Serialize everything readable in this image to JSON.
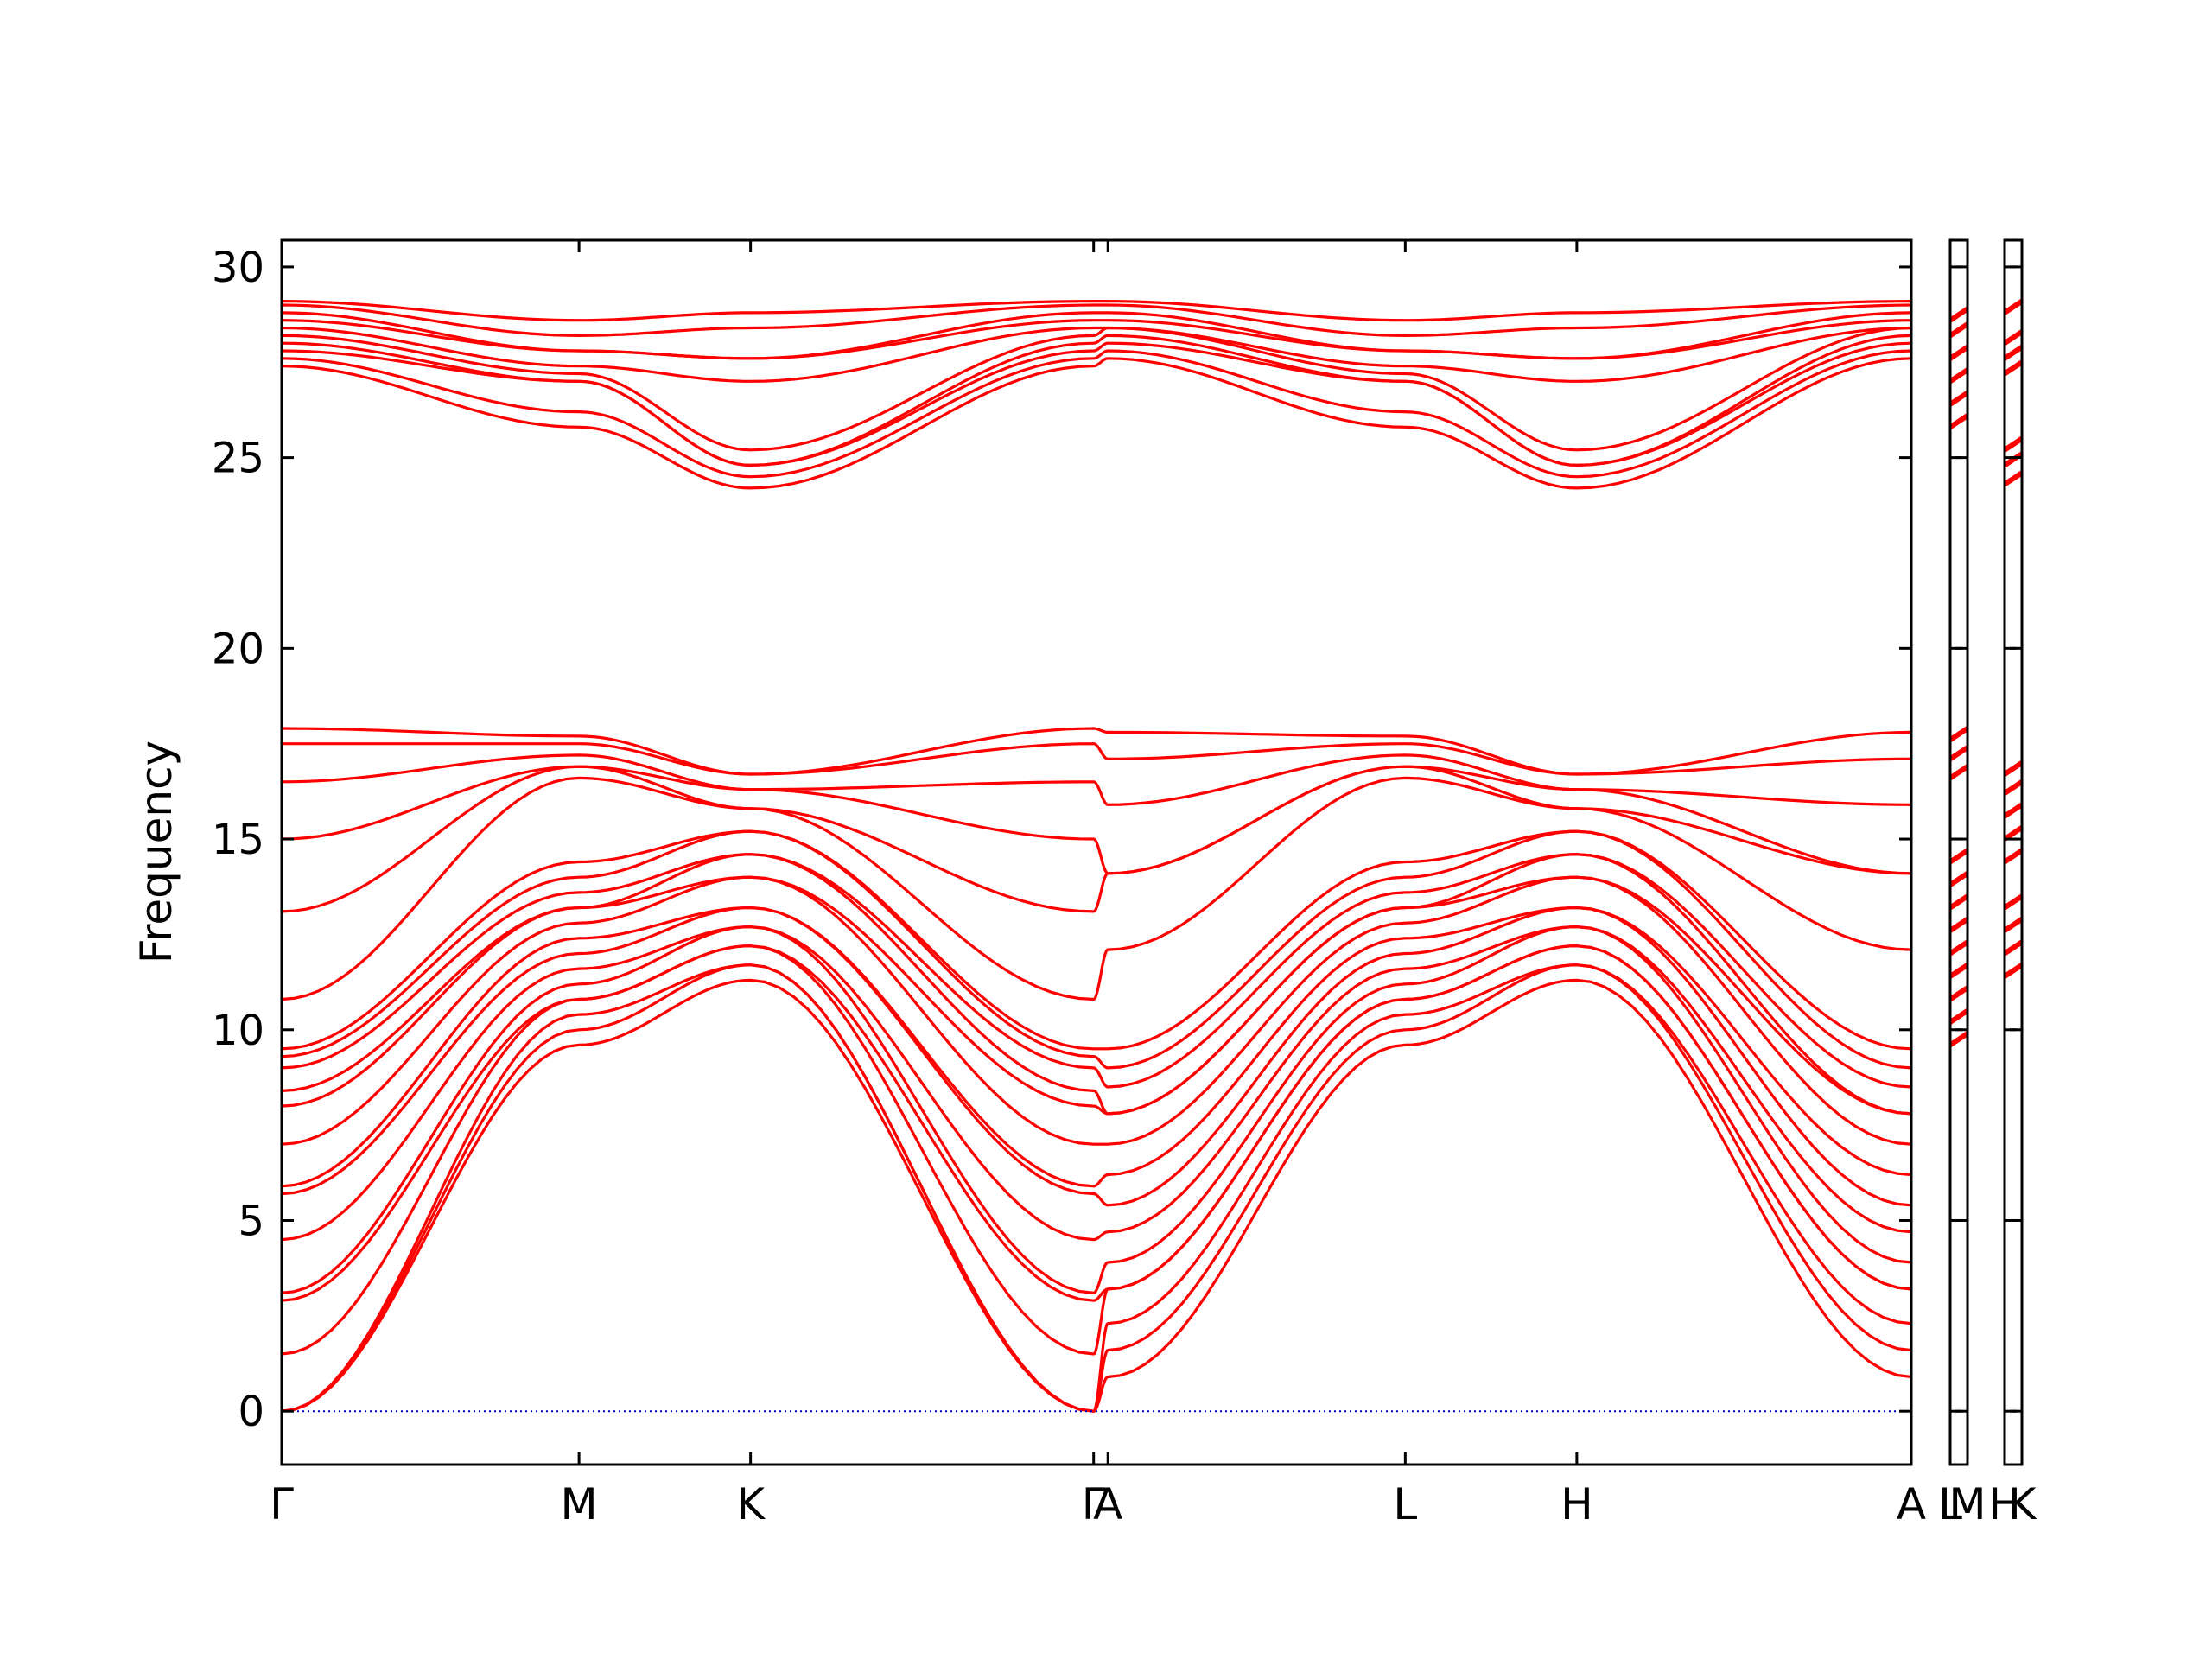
{
  "chart_data": {
    "type": "line",
    "title": "",
    "ylabel": "Frequency",
    "xlabel": "",
    "ylim": [
      -1.4,
      30.7
    ],
    "yticks": [
      0,
      5,
      10,
      15,
      20,
      25,
      30
    ],
    "ytick_labels": [
      "0",
      "5",
      "10",
      "15",
      "20",
      "25",
      "30"
    ],
    "grid": false,
    "line_color": "#ff0000",
    "zero_line_color": "#0000cc",
    "panels": [
      {
        "id": "main",
        "xrange": [
          0,
          5.7
        ],
        "ticks": [
          {
            "x": 0,
            "label": "Γ"
          },
          {
            "x": 1.04,
            "label": "M"
          },
          {
            "x": 1.64,
            "label": "K"
          },
          {
            "x": 2.84,
            "label": "Γ"
          },
          {
            "x": 2.89,
            "label": "A"
          },
          {
            "x": 3.93,
            "label": "L"
          },
          {
            "x": 4.53,
            "label": "H"
          },
          {
            "x": 5.7,
            "label": "A"
          }
        ]
      },
      {
        "id": "segment-LM",
        "xrange": [
          0,
          0.05
        ],
        "ticks": [
          {
            "x": 0,
            "label": "L"
          },
          {
            "x": 0.05,
            "label": "M"
          }
        ],
        "bands_sampled": [
          9.6,
          10.2,
          10.8,
          11.4,
          12.0,
          12.6,
          13.2,
          13.8,
          14.4,
          16.6,
          17.1,
          17.6,
          25.8,
          26.4,
          27.0,
          27.6,
          28.2,
          28.6
        ]
      },
      {
        "id": "segment-HK",
        "xrange": [
          0,
          0.05
        ],
        "ticks": [
          {
            "x": 0,
            "label": "H"
          },
          {
            "x": 0.05,
            "label": "K"
          }
        ],
        "bands_sampled": [
          11.4,
          12.0,
          12.6,
          13.2,
          14.4,
          15.0,
          15.6,
          16.2,
          16.7,
          24.3,
          24.8,
          25.2,
          27.2,
          27.6,
          28.0,
          28.8
        ]
      }
    ],
    "band_groups": {
      "acoustic_start_at_gamma": [
        0,
        0,
        0
      ],
      "gamma_optical_low": [
        1.5,
        2.9,
        3.1,
        4.5,
        5.7,
        5.9,
        7.0,
        8.0,
        8.4,
        9.0,
        9.3,
        9.5,
        10.8,
        13.1,
        15.0,
        16.5,
        17.5,
        17.9
      ],
      "gamma_optical_high": [
        27.4,
        27.6,
        27.8,
        28.0,
        28.2,
        28.4,
        28.6,
        28.8,
        29.0,
        29.1
      ],
      "M_values_low": [
        9.6,
        10.0,
        10.4,
        10.8,
        11.2,
        11.6,
        12.0,
        12.4,
        12.8,
        13.2,
        13.6,
        14.0,
        14.4,
        16.6,
        16.9,
        17.2,
        17.5,
        17.7
      ],
      "M_values_high": [
        25.8,
        26.2,
        27.0,
        27.2,
        27.4,
        27.8,
        28.2,
        28.6
      ],
      "K_values_low": [
        11.3,
        11.7,
        12.2,
        12.7,
        13.2,
        14.0,
        14.6,
        15.2,
        15.8,
        16.3,
        16.7
      ],
      "K_values_high": [
        24.2,
        24.5,
        24.8,
        25.2,
        27.0,
        27.6,
        28.4,
        28.8
      ],
      "A_values_low": [
        0.9,
        1.6,
        2.3,
        3.2,
        3.9,
        4.7,
        5.4,
        6.2,
        7.0,
        7.8,
        8.5,
        9.0,
        9.5,
        12.1,
        14.1,
        15.9,
        17.1,
        17.8
      ],
      "A_values_high": [
        27.6,
        27.8,
        28.0,
        28.2,
        28.4,
        28.6,
        28.8,
        29.0,
        29.1
      ]
    }
  }
}
